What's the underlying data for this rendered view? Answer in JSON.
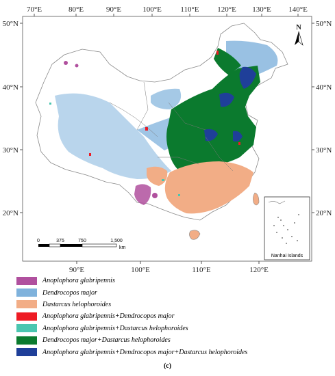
{
  "map": {
    "top_axis_labels": [
      "70°E",
      "80°E",
      "90°E",
      "100°E",
      "110°E",
      "120°E",
      "130°E",
      "140°E"
    ],
    "bottom_axis_labels": [
      "90°E",
      "100°E",
      "110°E",
      "120°E"
    ],
    "left_axis_labels": [
      "50°N",
      "40°N",
      "30°N",
      "20°N"
    ],
    "right_axis_labels": [
      "50°N",
      "40°N",
      "30°N",
      "20°N"
    ],
    "north_label": "N",
    "scale_bar": {
      "ticks": [
        "0",
        "375",
        "750",
        "1,500"
      ],
      "unit": "km"
    },
    "inset_label": "Nanhai Islands"
  },
  "legend": {
    "items": [
      {
        "label": "Anoplophora glabripennis",
        "color": "#b0509e"
      },
      {
        "label": "Dendrocopos major",
        "color": "#7fb2dc"
      },
      {
        "label": "Dastarcus helophoroides",
        "color": "#f2ad86"
      },
      {
        "label": "Anoplophora glabripennis+Dendrocopos major",
        "color": "#ee1b24"
      },
      {
        "label": "Anoplophora glabripennis+Dastarcus helophoroides",
        "color": "#4bc6b0"
      },
      {
        "label": "Dendrocopos major+Dastarcus helophoroides",
        "color": "#0b7a2e"
      },
      {
        "label": "Anoplophora glabripennis+Dendrocopos major+Dastarcus helophoroides",
        "color": "#1f3f99"
      }
    ]
  },
  "caption": "(c)"
}
